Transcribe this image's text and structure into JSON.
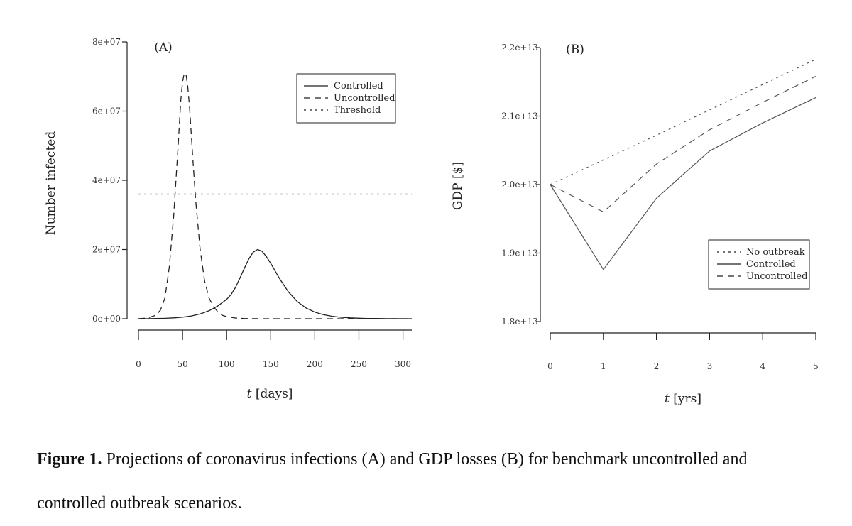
{
  "chart_data": [
    {
      "type": "line",
      "panel_label": "(A)",
      "xlabel": "t [days]",
      "xlabel_var": "t",
      "xlabel_unit": "[days]",
      "ylabel": "Number infected",
      "xlim": [
        0,
        310
      ],
      "ylim": [
        0,
        80000000
      ],
      "x_ticks": [
        0,
        50,
        100,
        150,
        200,
        250,
        300
      ],
      "x_tick_labels": [
        "0",
        "50",
        "100",
        "150",
        "200",
        "250",
        "300"
      ],
      "y_ticks": [
        0,
        20000000,
        40000000,
        60000000,
        80000000
      ],
      "y_tick_labels": [
        "0e+00",
        "2e+07",
        "4e+07",
        "6e+07",
        "8e+07"
      ],
      "legend_position": "top-right",
      "grid": false,
      "series": [
        {
          "name": "Controlled",
          "line_style": "solid",
          "x": [
            0,
            10,
            20,
            30,
            40,
            50,
            60,
            70,
            80,
            90,
            100,
            105,
            110,
            115,
            120,
            125,
            130,
            135,
            140,
            145,
            150,
            155,
            160,
            170,
            180,
            190,
            200,
            210,
            220,
            230,
            240,
            250,
            260,
            270,
            280,
            290,
            300,
            310
          ],
          "y": [
            0,
            20000,
            60000,
            130000,
            250000,
            450000,
            800000,
            1400000,
            2300000,
            3700000,
            5600000,
            7000000,
            9000000,
            11700000,
            14500000,
            17200000,
            19200000,
            20000000,
            19500000,
            18000000,
            16000000,
            13800000,
            11600000,
            7800000,
            5000000,
            3100000,
            1900000,
            1150000,
            700000,
            420000,
            250000,
            150000,
            90000,
            55000,
            30000,
            20000,
            10000,
            5000
          ]
        },
        {
          "name": "Uncontrolled",
          "line_style": "dashed",
          "x": [
            0,
            10,
            20,
            25,
            30,
            35,
            40,
            45,
            48,
            50,
            52,
            54,
            56,
            58,
            60,
            62,
            65,
            70,
            75,
            80,
            85,
            90,
            95,
            100,
            110,
            120,
            130,
            140,
            160,
            200,
            250,
            310
          ],
          "y": [
            0,
            200000,
            1000000,
            2500000,
            6000000,
            15000000,
            30000000,
            50000000,
            63000000,
            68500000,
            71000000,
            70500000,
            67000000,
            61000000,
            53000000,
            45000000,
            34000000,
            20000000,
            11000000,
            6000000,
            3500000,
            2000000,
            1000000,
            600000,
            200000,
            70000,
            20000,
            5000,
            0,
            0,
            0,
            0
          ]
        },
        {
          "name": "Threshold",
          "line_style": "dotted",
          "x": [
            0,
            310
          ],
          "y": [
            36000000,
            36000000
          ]
        }
      ]
    },
    {
      "type": "line",
      "panel_label": "(B)",
      "xlabel": "t [yrs]",
      "xlabel_var": "t",
      "xlabel_unit": "[yrs]",
      "ylabel": "GDP [$]",
      "xlim": [
        0,
        5
      ],
      "ylim": [
        18000000000000,
        22000000000000
      ],
      "x_ticks": [
        0,
        1,
        2,
        3,
        4,
        5
      ],
      "x_tick_labels": [
        "0",
        "1",
        "2",
        "3",
        "4",
        "5"
      ],
      "y_ticks": [
        18000000000000,
        19000000000000,
        20000000000000,
        21000000000000,
        22000000000000
      ],
      "y_tick_labels": [
        "1.8e+13",
        "1.9e+13",
        "2.0e+13",
        "2.1e+13",
        "2.2e+13"
      ],
      "legend_position": "bottom-right",
      "grid": false,
      "series": [
        {
          "name": "No outbreak",
          "line_style": "dotted",
          "x": [
            0,
            1,
            2,
            3,
            4,
            5
          ],
          "y": [
            20000000000000,
            20360000000000,
            20720000000000,
            21090000000000,
            21460000000000,
            21830000000000
          ]
        },
        {
          "name": "Controlled",
          "line_style": "solid",
          "x": [
            0,
            1,
            2,
            3,
            4,
            5
          ],
          "y": [
            20000000000000,
            18760000000000,
            19800000000000,
            20490000000000,
            20900000000000,
            21270000000000
          ]
        },
        {
          "name": "Uncontrolled",
          "line_style": "dashed",
          "x": [
            0,
            1,
            2,
            3,
            4,
            5
          ],
          "y": [
            20000000000000,
            19600000000000,
            20300000000000,
            20800000000000,
            21200000000000,
            21580000000000
          ]
        }
      ]
    }
  ],
  "caption": {
    "prefix": "Figure 1.",
    "text": " Projections of coronavirus infections (A) and GDP losses (B) for benchmark uncontrolled and controlled outbreak scenarios."
  }
}
